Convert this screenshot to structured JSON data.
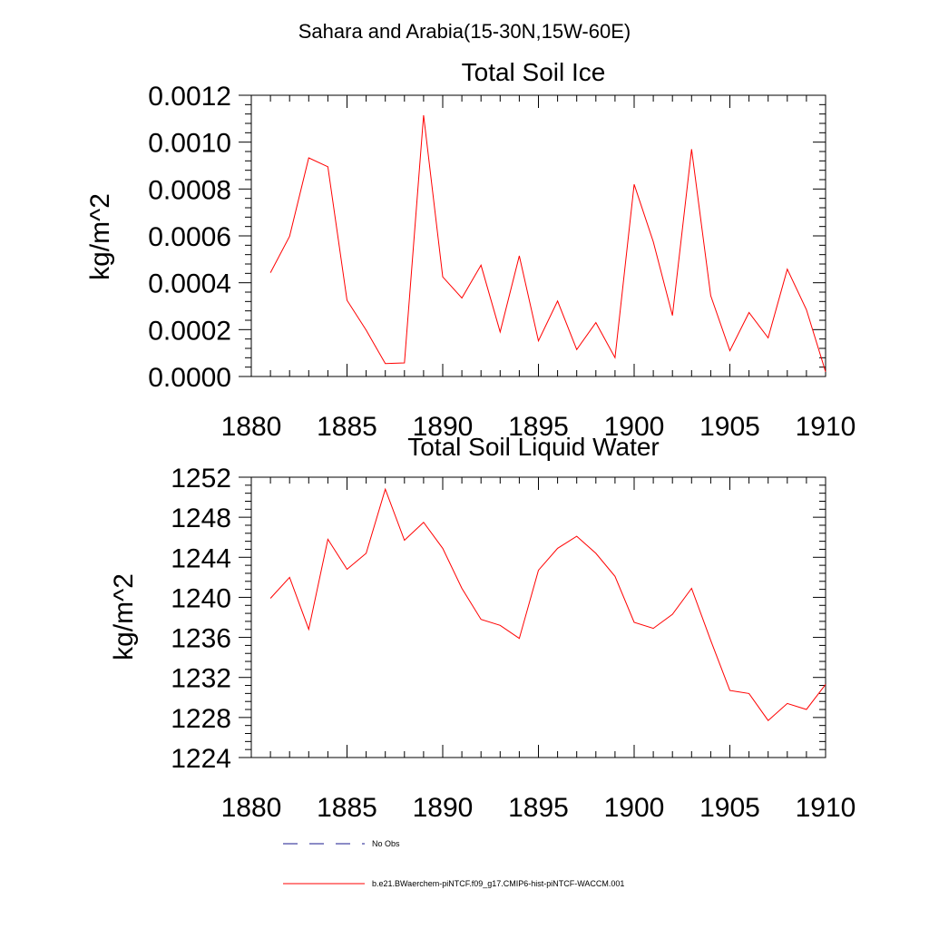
{
  "suptitle": "Sahara and Arabia(15-30N,15W-60E)",
  "colors": {
    "model_line": "#ff0000",
    "obs_line": "#1a1a8c",
    "axis": "#000000"
  },
  "legend": {
    "obs_label": "No Obs",
    "model_label": "b.e21.BWaerchem-piNTCF.f09_g17.CMIP6-hist-piNTCF-WACCM.001"
  },
  "chart_data": [
    {
      "type": "line",
      "title": "Total Soil Ice",
      "ylabel": "kg/m^2",
      "xlabel": "",
      "xlim": [
        1880,
        1910
      ],
      "ylim": [
        0,
        0.0012
      ],
      "xticks": [
        1880,
        1885,
        1890,
        1895,
        1900,
        1905,
        1910
      ],
      "xtick_labels": [
        "1880",
        "1885",
        "1890",
        "1895",
        "1900",
        "1905",
        "1910"
      ],
      "yticks": [
        0,
        0.0002,
        0.0004,
        0.0006,
        0.0008,
        0.001,
        0.0012
      ],
      "ytick_labels": [
        "0.0000",
        "0.0002",
        "0.0004",
        "0.0006",
        "0.0008",
        "0.0010",
        "0.0012"
      ],
      "series": [
        {
          "x": [
            1881,
            1882,
            1883,
            1884,
            1885,
            1886,
            1887,
            1888,
            1889,
            1890,
            1891,
            1892,
            1893,
            1894,
            1895,
            1896,
            1897,
            1898,
            1899,
            1900,
            1901,
            1902,
            1903,
            1904,
            1905,
            1906,
            1907,
            1908,
            1909,
            1910
          ],
          "values": [
            0.000443,
            0.000598,
            0.000933,
            0.000895,
            0.000325,
            0.000198,
            5.5e-05,
            5.8e-05,
            0.001115,
            0.000425,
            0.000335,
            0.000475,
            0.00019,
            0.000515,
            0.000152,
            0.000322,
            0.000115,
            0.00023,
            8e-05,
            0.00082,
            0.000575,
            0.00026,
            0.00097,
            0.000345,
            0.00011,
            0.000273,
            0.000165,
            0.000458,
            0.000285,
            2e-05
          ]
        }
      ]
    },
    {
      "type": "line",
      "title": "Total Soil Liquid Water",
      "ylabel": "kg/m^2",
      "xlabel": "",
      "xlim": [
        1880,
        1910
      ],
      "ylim": [
        1224,
        1252
      ],
      "xticks": [
        1880,
        1885,
        1890,
        1895,
        1900,
        1905,
        1910
      ],
      "xtick_labels": [
        "1880",
        "1885",
        "1890",
        "1895",
        "1900",
        "1905",
        "1910"
      ],
      "yticks": [
        1224,
        1228,
        1232,
        1236,
        1240,
        1244,
        1248,
        1252
      ],
      "ytick_labels": [
        "1224",
        "1228",
        "1232",
        "1236",
        "1240",
        "1244",
        "1248",
        "1252"
      ],
      "series": [
        {
          "x": [
            1881,
            1882,
            1883,
            1884,
            1885,
            1886,
            1887,
            1888,
            1889,
            1890,
            1891,
            1892,
            1893,
            1894,
            1895,
            1896,
            1897,
            1898,
            1899,
            1900,
            1901,
            1902,
            1903,
            1904,
            1905,
            1906,
            1907,
            1908,
            1909,
            1910
          ],
          "values": [
            1239.9,
            1242.0,
            1236.8,
            1245.8,
            1242.8,
            1244.4,
            1250.8,
            1245.7,
            1247.5,
            1244.9,
            1240.9,
            1237.8,
            1237.2,
            1235.9,
            1242.7,
            1244.9,
            1246.1,
            1244.4,
            1242.1,
            1237.5,
            1236.9,
            1238.3,
            1240.9,
            1235.7,
            1230.7,
            1230.4,
            1227.7,
            1229.4,
            1228.8,
            1231.3
          ]
        }
      ]
    }
  ]
}
